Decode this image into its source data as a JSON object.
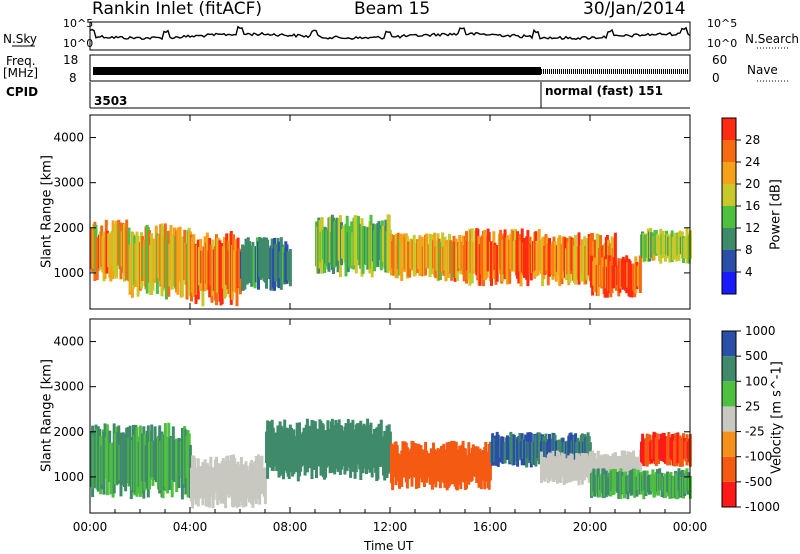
{
  "header": {
    "title": "Rankin Inlet (fitACF)",
    "beam": "Beam 15",
    "date": "30/Jan/2014"
  },
  "sky_panel": {
    "left_label": "N.Sky",
    "right_label": "N.Search",
    "left_ticks": [
      "10^5",
      "10^0"
    ],
    "right_ticks": [
      "10^5",
      "10^0"
    ]
  },
  "freq_panel": {
    "left_label_1": "Freq.",
    "left_label_2": "[MHz]",
    "left_ticks": [
      "18",
      "8"
    ],
    "right_label": "Nave",
    "right_ticks": [
      "60",
      "0"
    ]
  },
  "cpid_panel": {
    "label": "CPID",
    "first": "3503",
    "second": "normal (fast) 151"
  },
  "colors": {
    "power": [
      "#1a1aff",
      "#2b4fa8",
      "#3f8a6b",
      "#4fbf3f",
      "#c8c82a",
      "#f5a21a",
      "#f56a12",
      "#ff2a12"
    ],
    "velocity": [
      "#ff1a1a",
      "#f55a12",
      "#f5901a",
      "#c8c8c0",
      "#4fbf3f",
      "#3f8a6b",
      "#2b4fa8"
    ]
  },
  "chart_data": [
    {
      "type": "heatmap",
      "title": "",
      "xlabel": "Time UT",
      "ylabel": "Slant Range [km]",
      "xlim": [
        "00:00",
        "24:00"
      ],
      "x_ticks": [
        "00:00",
        "04:00",
        "08:00",
        "12:00",
        "16:00",
        "20:00",
        "00:00"
      ],
      "ylim": [
        200,
        4500
      ],
      "y_ticks": [
        1000,
        2000,
        3000,
        4000
      ],
      "colorbar": {
        "label": "Power [dB]",
        "ticks": [
          4,
          8,
          12,
          16,
          20,
          24,
          28
        ],
        "range": [
          0,
          32
        ]
      },
      "series": [
        {
          "name": "Power",
          "bands": [
            {
              "t": [
                0,
                1.5
              ],
              "r": [
                800,
                2200
              ],
              "level": 22
            },
            {
              "t": [
                1.5,
                4
              ],
              "r": [
                400,
                2100
              ],
              "level": 20
            },
            {
              "t": [
                4,
                6
              ],
              "r": [
                250,
                2000
              ],
              "level": 24
            },
            {
              "t": [
                6,
                8
              ],
              "r": [
                600,
                1800
              ],
              "level": 10
            },
            {
              "t": [
                9,
                12
              ],
              "r": [
                900,
                2300
              ],
              "level": 14
            },
            {
              "t": [
                12,
                15
              ],
              "r": [
                800,
                1900
              ],
              "level": 22
            },
            {
              "t": [
                15,
                18
              ],
              "r": [
                700,
                2000
              ],
              "level": 26
            },
            {
              "t": [
                18,
                21
              ],
              "r": [
                700,
                1900
              ],
              "level": 24
            },
            {
              "t": [
                20,
                22
              ],
              "r": [
                450,
                1400
              ],
              "level": 28
            },
            {
              "t": [
                22,
                24
              ],
              "r": [
                1200,
                2000
              ],
              "level": 16
            }
          ]
        }
      ]
    },
    {
      "type": "heatmap",
      "title": "",
      "xlabel": "Time UT",
      "ylabel": "Slant Range [km]",
      "xlim": [
        "00:00",
        "24:00"
      ],
      "x_ticks": [
        "00:00",
        "04:00",
        "08:00",
        "12:00",
        "16:00",
        "20:00",
        "00:00"
      ],
      "ylim": [
        200,
        4500
      ],
      "y_ticks": [
        1000,
        2000,
        3000,
        4000
      ],
      "colorbar": {
        "label": "Velocity [m s^-1]",
        "ticks": [
          1000,
          500,
          100,
          25,
          -25,
          -100,
          -500,
          -1000
        ]
      },
      "series": [
        {
          "name": "Velocity",
          "bands": [
            {
              "t": [
                0,
                4
              ],
              "r": [
                500,
                2200
              ],
              "level": 100
            },
            {
              "t": [
                4,
                7
              ],
              "r": [
                300,
                1500
              ],
              "level": 0
            },
            {
              "t": [
                7,
                12
              ],
              "r": [
                900,
                2300
              ],
              "level": 200
            },
            {
              "t": [
                12,
                16
              ],
              "r": [
                700,
                1800
              ],
              "level": -300
            },
            {
              "t": [
                16,
                20
              ],
              "r": [
                1200,
                2000
              ],
              "level": 500
            },
            {
              "t": [
                18,
                22
              ],
              "r": [
                800,
                1600
              ],
              "level": 0
            },
            {
              "t": [
                20,
                24
              ],
              "r": [
                500,
                1200
              ],
              "level": 100
            },
            {
              "t": [
                22,
                24
              ],
              "r": [
                1200,
                2000
              ],
              "level": -500
            }
          ]
        }
      ]
    }
  ]
}
